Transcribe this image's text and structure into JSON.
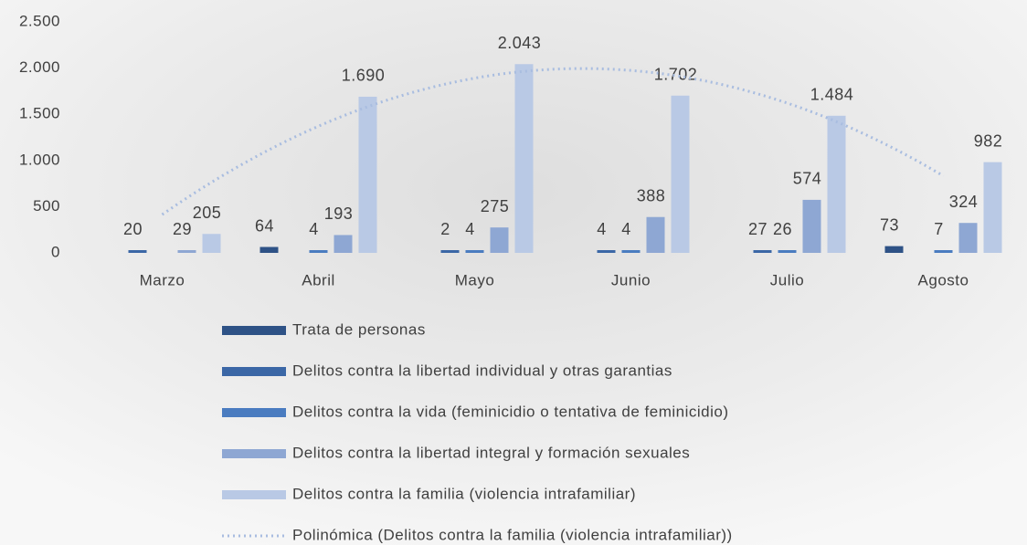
{
  "chart_data": {
    "type": "bar",
    "categories": [
      "Marzo",
      "Abril",
      "Mayo",
      "Junio",
      "Julio",
      "Agosto"
    ],
    "series": [
      {
        "name": "Trata de personas",
        "color": "#2e5286",
        "values": [
          null,
          64,
          null,
          null,
          null,
          73
        ]
      },
      {
        "name": "Delitos contra la libertad individual y otras garantias",
        "color": "#3b67a6",
        "values": [
          20,
          null,
          2,
          4,
          27,
          null
        ]
      },
      {
        "name": "Delitos contra la vida (feminicidio o tentativa de feminicidio)",
        "color": "#4a7cc0",
        "values": [
          null,
          4,
          4,
          4,
          26,
          7
        ]
      },
      {
        "name": "Delitos contra la libertad integral y formación sexuales",
        "color": "#8ea7d3",
        "values": [
          29,
          193,
          275,
          388,
          574,
          324
        ]
      },
      {
        "name": "Delitos contra la familia (violencia intrafamiliar)",
        "color": "#b9c9e5",
        "values": [
          205,
          1690,
          2043,
          1702,
          1484,
          982
        ],
        "value_labels": [
          "205",
          "1.690",
          "2.043",
          "1.702",
          "1.484",
          "982"
        ]
      }
    ],
    "trendline": {
      "name": "Polinómica (Delitos contra la familia (violencia intrafamiliar))",
      "series": 4,
      "color": "#a9bde0"
    },
    "ylim": [
      0,
      2500
    ],
    "yticks": [
      0,
      500,
      {
        "value": 1000,
        "label": "1.000"
      },
      {
        "value": 1500,
        "label": "1.500"
      },
      {
        "value": 2000,
        "label": "2.000"
      },
      {
        "value": 2500,
        "label": "2.500"
      }
    ],
    "grid": false
  }
}
